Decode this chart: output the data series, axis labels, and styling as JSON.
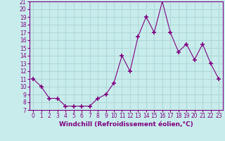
{
  "x": [
    0,
    1,
    2,
    3,
    4,
    5,
    6,
    7,
    8,
    9,
    10,
    11,
    12,
    13,
    14,
    15,
    16,
    17,
    18,
    19,
    20,
    21,
    22,
    23
  ],
  "y_data": [
    11,
    10,
    8.5,
    8.5,
    7.5,
    7.5,
    7.5,
    7.5,
    8.5,
    9,
    10.5,
    14,
    12,
    16.5,
    19,
    17,
    21,
    17,
    14.5,
    15.5,
    13.5,
    15.5,
    13,
    11
  ],
  "ylim_min": 7,
  "ylim_max": 21,
  "yticks": [
    7,
    8,
    9,
    10,
    11,
    12,
    13,
    14,
    15,
    16,
    17,
    18,
    19,
    20,
    21
  ],
  "xticks": [
    0,
    1,
    2,
    3,
    4,
    5,
    6,
    7,
    8,
    9,
    10,
    11,
    12,
    13,
    14,
    15,
    16,
    17,
    18,
    19,
    20,
    21,
    22,
    23
  ],
  "xlabel": "Windchill (Refroidissement éolien,°C)",
  "line_color": "#800080",
  "marker": "+",
  "bg_color": "#c8ecec",
  "grid_color": "#b0d8d8",
  "tick_fontsize": 5.5,
  "xlabel_fontsize": 6.5,
  "border_color": "#800080"
}
